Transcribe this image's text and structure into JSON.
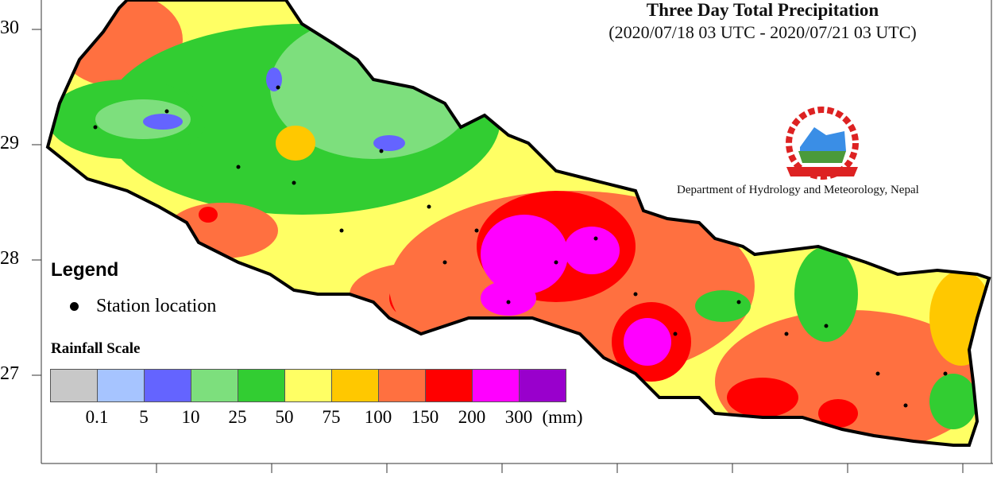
{
  "title": "Three Day Total Precipitation",
  "subtitle": "(2020/07/18 03 UTC - 2020/07/21 03 UTC)",
  "department": "Department of Hydrology and Meteorology, Nepal",
  "logo": "nepal-government-emblem",
  "legend": {
    "title": "Legend",
    "station_label": "Station location"
  },
  "rainfall_scale": {
    "title": "Rainfall Scale",
    "unit": "(mm)",
    "labels": [
      "0.1",
      "5",
      "10",
      "25",
      "50",
      "75",
      "100",
      "150",
      "200",
      "300"
    ],
    "colors": [
      "#c8c8c8",
      "#a6c4ff",
      "#6464ff",
      "#7ddf7d",
      "#32cd32",
      "#ffff64",
      "#ffc800",
      "#ff7040",
      "#ff0000",
      "#ff00ff",
      "#9900cc"
    ]
  },
  "latitude_ticks": [
    "30",
    "29",
    "28",
    "27"
  ]
}
